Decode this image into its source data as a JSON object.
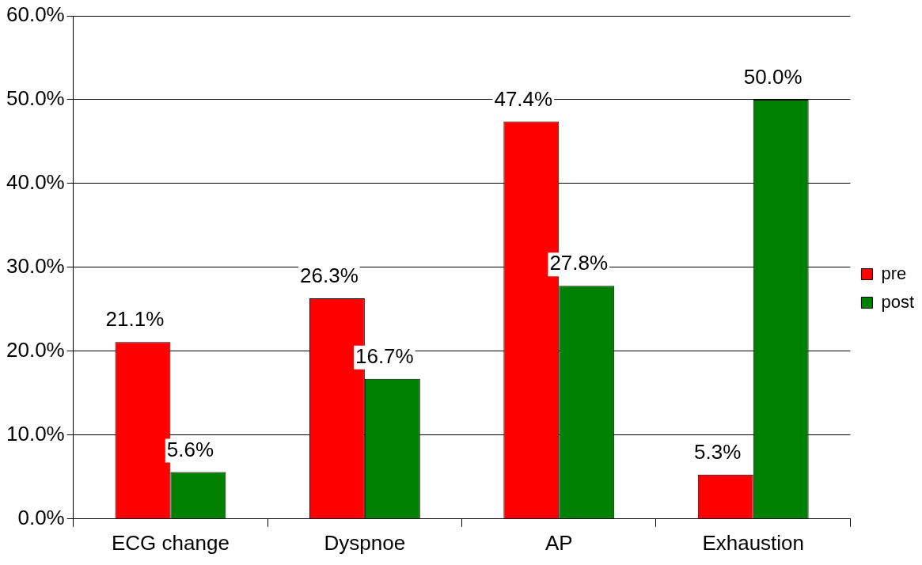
{
  "chart_data": {
    "type": "bar",
    "categories": [
      "ECG change",
      "Dyspnoe",
      "AP",
      "Exhaustion"
    ],
    "series": [
      {
        "name": "pre",
        "color": "#ff0000",
        "values": [
          21.1,
          26.3,
          47.4,
          5.3
        ],
        "value_labels": [
          "21.1%",
          "26.3%",
          "47.4%",
          "5.3%"
        ]
      },
      {
        "name": "post",
        "color": "#008000",
        "values": [
          5.6,
          16.7,
          27.8,
          50.0
        ],
        "value_labels": [
          "5.6%",
          "16.7%",
          "27.8%",
          "50.0%"
        ]
      }
    ],
    "ylim": [
      0,
      60
    ],
    "yticks": [
      {
        "value": 0,
        "label": "0.0%"
      },
      {
        "value": 10,
        "label": "10.0%"
      },
      {
        "value": 20,
        "label": "20.0%"
      },
      {
        "value": 30,
        "label": "30.0%"
      },
      {
        "value": 40,
        "label": "40.0%"
      },
      {
        "value": 50,
        "label": "50.0%"
      },
      {
        "value": 60,
        "label": "60.0%"
      }
    ],
    "grid": "y",
    "legend": "right"
  }
}
